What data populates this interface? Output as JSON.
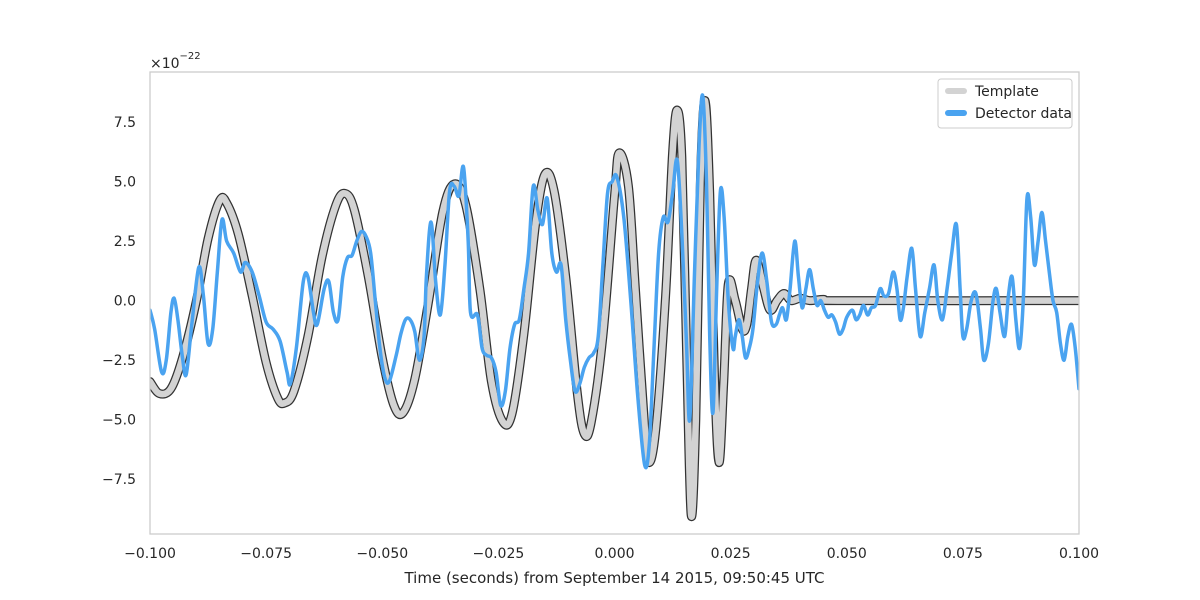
{
  "chart_data": {
    "type": "line",
    "xlabel": "Time (seconds) from September 14 2015, 09:50:45 UTC",
    "ylabel": "",
    "offset_label": "×10",
    "offset_exponent": "−22",
    "xlim": [
      -0.1,
      0.1
    ],
    "ylim": [
      -9.8,
      9.6
    ],
    "x_ticks": [
      -0.1,
      -0.075,
      -0.05,
      -0.025,
      0.0,
      0.025,
      0.05,
      0.075,
      0.1
    ],
    "x_tick_labels": [
      "−0.100",
      "−0.075",
      "−0.050",
      "−0.025",
      "0.000",
      "0.025",
      "0.050",
      "0.075",
      "0.100"
    ],
    "y_ticks": [
      -7.5,
      -5.0,
      -2.5,
      0.0,
      2.5,
      5.0,
      7.5
    ],
    "y_tick_labels": [
      "−7.5",
      "−5.0",
      "−2.5",
      "0.0",
      "2.5",
      "5.0",
      "7.5"
    ],
    "grid": false,
    "legend_position": "top-right",
    "series": [
      {
        "name": "Template",
        "color": "#d3d3d3",
        "edge_color": "#333333",
        "points": [
          [
            -0.1,
            -3.4
          ],
          [
            -0.098,
            -3.9
          ],
          [
            -0.0955,
            -3.7
          ],
          [
            -0.093,
            -2.4
          ],
          [
            -0.09,
            0.0
          ],
          [
            -0.0875,
            2.6
          ],
          [
            -0.085,
            4.2
          ],
          [
            -0.0835,
            4.1
          ],
          [
            -0.081,
            2.8
          ],
          [
            -0.078,
            0.2
          ],
          [
            -0.075,
            -2.6
          ],
          [
            -0.0725,
            -4.1
          ],
          [
            -0.071,
            -4.3
          ],
          [
            -0.069,
            -3.8
          ],
          [
            -0.066,
            -1.5
          ],
          [
            -0.063,
            1.8
          ],
          [
            -0.06,
            4.0
          ],
          [
            -0.058,
            4.5
          ],
          [
            -0.056,
            3.8
          ],
          [
            -0.053,
            1.0
          ],
          [
            -0.05,
            -2.4
          ],
          [
            -0.0475,
            -4.4
          ],
          [
            -0.0455,
            -4.7
          ],
          [
            -0.043,
            -3.3
          ],
          [
            -0.04,
            0.0
          ],
          [
            -0.037,
            3.7
          ],
          [
            -0.0345,
            4.9
          ],
          [
            -0.032,
            4.0
          ],
          [
            -0.029,
            0.5
          ],
          [
            -0.0265,
            -3.4
          ],
          [
            -0.024,
            -5.1
          ],
          [
            -0.022,
            -4.7
          ],
          [
            -0.0195,
            -1.4
          ],
          [
            -0.017,
            3.2
          ],
          [
            -0.015,
            5.3
          ],
          [
            -0.013,
            4.6
          ],
          [
            -0.0105,
            1.0
          ],
          [
            -0.008,
            -3.9
          ],
          [
            -0.0065,
            -5.6
          ],
          [
            -0.005,
            -5.1
          ],
          [
            -0.0025,
            -1.5
          ],
          [
            0.0,
            4.4
          ],
          [
            0.001,
            6.2
          ],
          [
            0.003,
            4.8
          ],
          [
            0.0045,
            0.5
          ],
          [
            0.0065,
            -5.3
          ],
          [
            0.0075,
            -6.8
          ],
          [
            0.009,
            -5.2
          ],
          [
            0.011,
            0.2
          ],
          [
            0.0125,
            6.2
          ],
          [
            0.0135,
            8.0
          ],
          [
            0.0145,
            6.0
          ],
          [
            0.0155,
            -2.0
          ],
          [
            0.0165,
            -9.0
          ],
          [
            0.0175,
            -5.0
          ],
          [
            0.0185,
            5.0
          ],
          [
            0.0195,
            8.4
          ],
          [
            0.0205,
            4.5
          ],
          [
            0.0215,
            -3.0
          ],
          [
            0.0225,
            -6.8
          ],
          [
            0.0235,
            -3.5
          ],
          [
            0.0245,
            0.7
          ],
          [
            0.026,
            0.0
          ],
          [
            0.0275,
            -1.2
          ],
          [
            0.0285,
            -1.0
          ],
          [
            0.0295,
            0.5
          ],
          [
            0.0305,
            1.7
          ],
          [
            0.032,
            0.6
          ],
          [
            0.0335,
            -0.4
          ],
          [
            0.035,
            0.0
          ],
          [
            0.0365,
            0.3
          ],
          [
            0.038,
            0.0
          ],
          [
            0.04,
            0.1
          ],
          [
            0.042,
            0.0
          ],
          [
            0.045,
            0.05
          ],
          [
            0.048,
            0.0
          ],
          [
            0.1,
            0.0
          ]
        ]
      },
      {
        "name": "Detector data",
        "color": "#4aa3f0",
        "points": [
          [
            -0.1,
            -0.4
          ],
          [
            -0.099,
            -1.2
          ],
          [
            -0.0975,
            -3.0
          ],
          [
            -0.0965,
            -2.5
          ],
          [
            -0.0955,
            -0.5
          ],
          [
            -0.0948,
            0.1
          ],
          [
            -0.094,
            -0.8
          ],
          [
            -0.093,
            -2.4
          ],
          [
            -0.0922,
            -3.1
          ],
          [
            -0.091,
            -1.0
          ],
          [
            -0.0895,
            1.4
          ],
          [
            -0.0885,
            0.2
          ],
          [
            -0.0875,
            -1.8
          ],
          [
            -0.0865,
            -1.2
          ],
          [
            -0.0855,
            1.2
          ],
          [
            -0.0845,
            3.4
          ],
          [
            -0.0835,
            2.5
          ],
          [
            -0.082,
            2.0
          ],
          [
            -0.0805,
            1.2
          ],
          [
            -0.0795,
            1.6
          ],
          [
            -0.078,
            1.2
          ],
          [
            -0.0765,
            0.2
          ],
          [
            -0.075,
            -0.9
          ],
          [
            -0.0735,
            -1.2
          ],
          [
            -0.072,
            -1.7
          ],
          [
            -0.0705,
            -3.0
          ],
          [
            -0.0698,
            -3.5
          ],
          [
            -0.0685,
            -2.0
          ],
          [
            -0.067,
            0.8
          ],
          [
            -0.066,
            1.0
          ],
          [
            -0.0648,
            -0.5
          ],
          [
            -0.064,
            -1.0
          ],
          [
            -0.0625,
            0.5
          ],
          [
            -0.0615,
            0.8
          ],
          [
            -0.0605,
            -0.5
          ],
          [
            -0.0595,
            -0.8
          ],
          [
            -0.0585,
            1.0
          ],
          [
            -0.0575,
            1.8
          ],
          [
            -0.0565,
            1.9
          ],
          [
            -0.0555,
            2.5
          ],
          [
            -0.0545,
            2.9
          ],
          [
            -0.0535,
            2.7
          ],
          [
            -0.0525,
            2.0
          ],
          [
            -0.0515,
            0.0
          ],
          [
            -0.0505,
            -2.0
          ],
          [
            -0.0495,
            -3.2
          ],
          [
            -0.0485,
            -3.4
          ],
          [
            -0.047,
            -2.3
          ],
          [
            -0.046,
            -1.4
          ],
          [
            -0.045,
            -0.8
          ],
          [
            -0.044,
            -0.8
          ],
          [
            -0.043,
            -1.3
          ],
          [
            -0.042,
            -2.5
          ],
          [
            -0.041,
            -1.5
          ],
          [
            -0.0405,
            1.0
          ],
          [
            -0.0395,
            3.3
          ],
          [
            -0.0385,
            0.8
          ],
          [
            -0.0375,
            -0.6
          ],
          [
            -0.0365,
            1.5
          ],
          [
            -0.0355,
            4.6
          ],
          [
            -0.0345,
            4.8
          ],
          [
            -0.0335,
            4.4
          ],
          [
            -0.0325,
            5.6
          ],
          [
            -0.0315,
            2.5
          ],
          [
            -0.031,
            -0.5
          ],
          [
            -0.0295,
            -0.6
          ],
          [
            -0.0285,
            -2.0
          ],
          [
            -0.0275,
            -2.3
          ],
          [
            -0.0265,
            -2.4
          ],
          [
            -0.0255,
            -3.0
          ],
          [
            -0.0245,
            -4.4
          ],
          [
            -0.0235,
            -3.8
          ],
          [
            -0.0225,
            -2.0
          ],
          [
            -0.0215,
            -1.0
          ],
          [
            -0.0205,
            -0.8
          ],
          [
            -0.0195,
            0.5
          ],
          [
            -0.0185,
            2.0
          ],
          [
            -0.0175,
            4.8
          ],
          [
            -0.0165,
            3.8
          ],
          [
            -0.0155,
            3.2
          ],
          [
            -0.0145,
            4.3
          ],
          [
            -0.0135,
            2.0
          ],
          [
            -0.0125,
            1.2
          ],
          [
            -0.0115,
            1.5
          ],
          [
            -0.0105,
            -0.8
          ],
          [
            -0.0095,
            -2.5
          ],
          [
            -0.0085,
            -3.8
          ],
          [
            -0.0075,
            -3.5
          ],
          [
            -0.0065,
            -2.8
          ],
          [
            -0.0055,
            -2.4
          ],
          [
            -0.0045,
            -2.2
          ],
          [
            -0.0035,
            -1.5
          ],
          [
            -0.0025,
            1.5
          ],
          [
            -0.0015,
            4.5
          ],
          [
            -0.0005,
            5.0
          ],
          [
            0.0005,
            5.2
          ],
          [
            0.002,
            3.5
          ],
          [
            0.0035,
            0.0
          ],
          [
            0.005,
            -4.0
          ],
          [
            0.0065,
            -6.9
          ],
          [
            0.0075,
            -6.0
          ],
          [
            0.0085,
            -2.0
          ],
          [
            0.0095,
            2.0
          ],
          [
            0.0105,
            3.5
          ],
          [
            0.0115,
            3.3
          ],
          [
            0.0125,
            4.5
          ],
          [
            0.0135,
            5.9
          ],
          [
            0.0145,
            2.8
          ],
          [
            0.0155,
            -1.8
          ],
          [
            0.0162,
            -5.0
          ],
          [
            0.0172,
            1.0
          ],
          [
            0.0182,
            6.5
          ],
          [
            0.019,
            8.6
          ],
          [
            0.0198,
            5.0
          ],
          [
            0.0205,
            -1.5
          ],
          [
            0.0212,
            -4.7
          ],
          [
            0.022,
            0.5
          ],
          [
            0.0228,
            4.6
          ],
          [
            0.0236,
            3.5
          ],
          [
            0.0245,
            0.0
          ],
          [
            0.0255,
            -2.0
          ],
          [
            0.026,
            -1.5
          ],
          [
            0.0268,
            -0.8
          ],
          [
            0.0275,
            -1.5
          ],
          [
            0.0282,
            -2.4
          ],
          [
            0.029,
            -2.0
          ],
          [
            0.0298,
            -1.2
          ],
          [
            0.0308,
            0.8
          ],
          [
            0.0318,
            2.0
          ],
          [
            0.0328,
            0.8
          ],
          [
            0.0338,
            -0.9
          ],
          [
            0.0348,
            -1.0
          ],
          [
            0.0355,
            -0.6
          ],
          [
            0.0362,
            -0.3
          ],
          [
            0.037,
            -0.8
          ],
          [
            0.0378,
            0.5
          ],
          [
            0.0388,
            2.5
          ],
          [
            0.0396,
            1.0
          ],
          [
            0.0404,
            -0.3
          ],
          [
            0.0412,
            0.5
          ],
          [
            0.042,
            1.3
          ],
          [
            0.0428,
            0.5
          ],
          [
            0.0436,
            -0.2
          ],
          [
            0.0444,
            0.0
          ],
          [
            0.0452,
            -0.4
          ],
          [
            0.046,
            -0.7
          ],
          [
            0.0468,
            -0.6
          ],
          [
            0.0476,
            -0.9
          ],
          [
            0.0484,
            -1.4
          ],
          [
            0.0492,
            -1.2
          ],
          [
            0.05,
            -0.7
          ],
          [
            0.0512,
            -0.4
          ],
          [
            0.052,
            -0.8
          ],
          [
            0.0528,
            -0.6
          ],
          [
            0.0536,
            -0.2
          ],
          [
            0.0545,
            -0.6
          ],
          [
            0.0553,
            -0.3
          ],
          [
            0.0562,
            -0.2
          ],
          [
            0.0572,
            0.5
          ],
          [
            0.058,
            0.2
          ],
          [
            0.059,
            0.3
          ],
          [
            0.06,
            1.2
          ],
          [
            0.0608,
            0.5
          ],
          [
            0.0615,
            -0.8
          ],
          [
            0.0622,
            -0.3
          ],
          [
            0.063,
            1.0
          ],
          [
            0.064,
            2.2
          ],
          [
            0.0648,
            0.5
          ],
          [
            0.0658,
            -1.5
          ],
          [
            0.0668,
            -0.5
          ],
          [
            0.0678,
            0.5
          ],
          [
            0.0688,
            1.5
          ],
          [
            0.0696,
            0.0
          ],
          [
            0.0706,
            -0.8
          ],
          [
            0.0716,
            0.5
          ],
          [
            0.0726,
            2.0
          ],
          [
            0.0736,
            3.2
          ],
          [
            0.0744,
            0.5
          ],
          [
            0.075,
            -1.5
          ],
          [
            0.0758,
            -1.2
          ],
          [
            0.0768,
            0.0
          ],
          [
            0.0778,
            0.3
          ],
          [
            0.0788,
            -1.2
          ],
          [
            0.0795,
            -2.5
          ],
          [
            0.0805,
            -1.8
          ],
          [
            0.0815,
            0.0
          ],
          [
            0.0822,
            0.5
          ],
          [
            0.083,
            -0.5
          ],
          [
            0.084,
            -1.5
          ],
          [
            0.0848,
            0.2
          ],
          [
            0.0856,
            1.0
          ],
          [
            0.0864,
            -0.8
          ],
          [
            0.0872,
            -2.0
          ],
          [
            0.088,
            0.0
          ],
          [
            0.0888,
            4.3
          ],
          [
            0.0896,
            3.5
          ],
          [
            0.0904,
            1.5
          ],
          [
            0.0912,
            2.5
          ],
          [
            0.092,
            3.7
          ],
          [
            0.0928,
            2.5
          ],
          [
            0.0936,
            1.2
          ],
          [
            0.0944,
            0.0
          ],
          [
            0.0952,
            -0.5
          ],
          [
            0.096,
            -1.8
          ],
          [
            0.0968,
            -2.5
          ],
          [
            0.0976,
            -1.5
          ],
          [
            0.0984,
            -1.0
          ],
          [
            0.0992,
            -2.0
          ],
          [
            0.1,
            -3.7
          ]
        ]
      }
    ]
  }
}
